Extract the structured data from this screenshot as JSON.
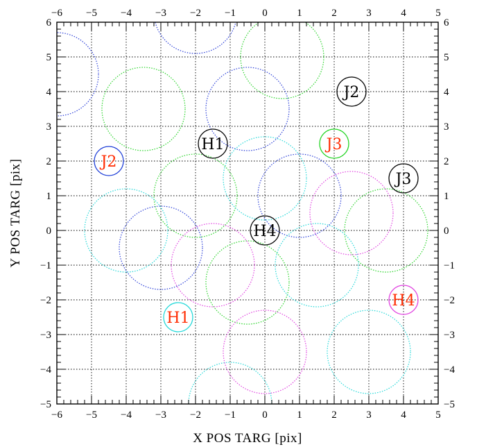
{
  "chart_data": {
    "type": "scatter",
    "title": "",
    "xlabel": "X POS TARG [pix]",
    "ylabel": "Y POS TARG [pix]",
    "xlim": [
      -6,
      5
    ],
    "ylim": [
      -5,
      6
    ],
    "grid": true,
    "x_ticks": [
      "−6",
      "−5",
      "−4",
      "−3",
      "−2",
      "−1",
      "0",
      "1",
      "2",
      "3",
      "4",
      "5"
    ],
    "y_ticks": [
      "−5",
      "−4",
      "−3",
      "−2",
      "−1",
      "0",
      "1",
      "2",
      "3",
      "4",
      "5",
      "6"
    ],
    "dithers": [
      {
        "x": -6.0,
        "y": 4.5,
        "color": "#2b3fd8"
      },
      {
        "x": -2.0,
        "y": 6.3,
        "color": "#2b3fd8"
      },
      {
        "x": -0.5,
        "y": 3.5,
        "color": "#2b3fd8"
      },
      {
        "x": 1.0,
        "y": 1.0,
        "color": "#2b3fd8"
      },
      {
        "x": -3.0,
        "y": -0.5,
        "color": "#2b3fd8"
      },
      {
        "x": 0.5,
        "y": 5.0,
        "color": "#28d428"
      },
      {
        "x": -3.5,
        "y": 3.5,
        "color": "#28d428"
      },
      {
        "x": -2.0,
        "y": 1.0,
        "color": "#28d428"
      },
      {
        "x": 3.5,
        "y": 0.0,
        "color": "#28d428"
      },
      {
        "x": -0.5,
        "y": -1.5,
        "color": "#28d428"
      },
      {
        "x": 0.0,
        "y": 1.5,
        "color": "#22d8d8"
      },
      {
        "x": -4.0,
        "y": 0.0,
        "color": "#22d8d8"
      },
      {
        "x": 1.5,
        "y": -1.0,
        "color": "#22d8d8"
      },
      {
        "x": 3.0,
        "y": -3.5,
        "color": "#22d8d8"
      },
      {
        "x": -1.0,
        "y": -5.0,
        "color": "#22d8d8"
      },
      {
        "x": 2.5,
        "y": 0.5,
        "color": "#e040e0"
      },
      {
        "x": -1.5,
        "y": -1.0,
        "color": "#e040e0"
      },
      {
        "x": 0.0,
        "y": -3.5,
        "color": "#e040e0"
      }
    ],
    "markers": [
      {
        "label": "J2",
        "x": 2.5,
        "y": 4.0,
        "text_color": "#000000",
        "ring_color": "#000000"
      },
      {
        "label": "H1",
        "x": -1.5,
        "y": 2.5,
        "text_color": "#000000",
        "ring_color": "#000000"
      },
      {
        "label": "J3",
        "x": 2.0,
        "y": 2.5,
        "text_color": "#ff2a00",
        "ring_color": "#22d422"
      },
      {
        "label": "J2",
        "x": -4.5,
        "y": 2.0,
        "text_color": "#ff2a00",
        "ring_color": "#2040d8"
      },
      {
        "label": "J3",
        "x": 4.0,
        "y": 1.5,
        "text_color": "#000000",
        "ring_color": "#000000"
      },
      {
        "label": "H4",
        "x": 0.0,
        "y": 0.0,
        "text_color": "#000000",
        "ring_color": "#000000"
      },
      {
        "label": "H4",
        "x": 4.0,
        "y": -2.0,
        "text_color": "#ff2a00",
        "ring_color": "#e040e0"
      },
      {
        "label": "H1",
        "x": -2.5,
        "y": -2.5,
        "text_color": "#ff2a00",
        "ring_color": "#22d8d8"
      }
    ]
  }
}
